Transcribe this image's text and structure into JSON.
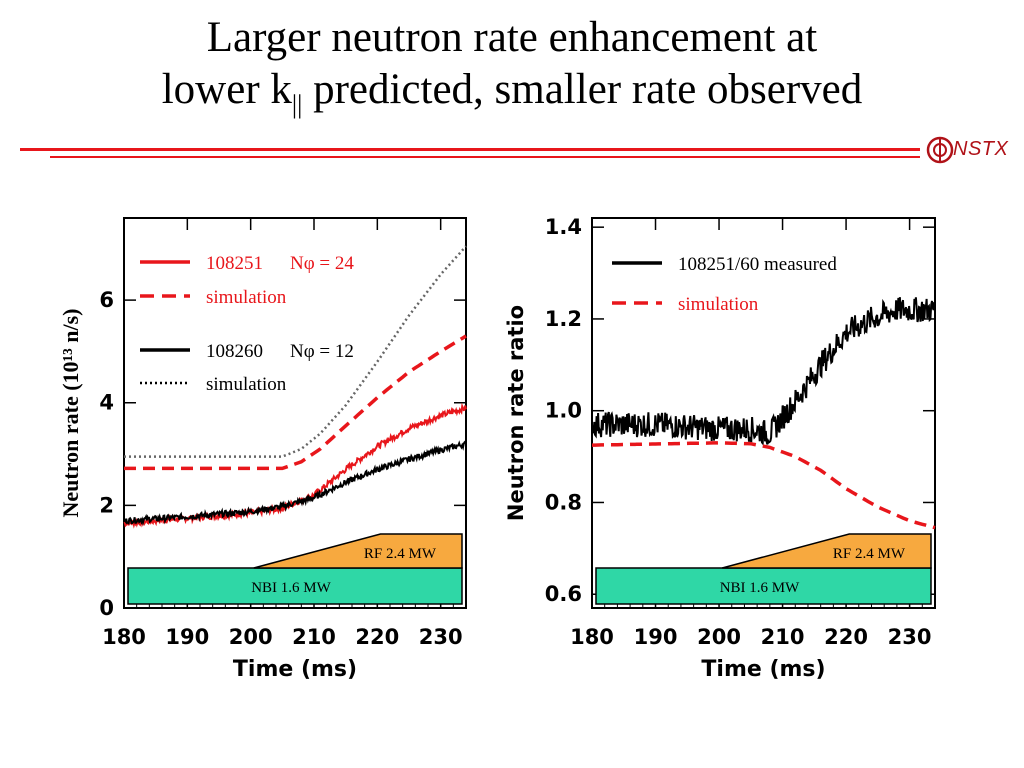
{
  "slide": {
    "title_line1": "Larger neutron rate enhancement at",
    "title_line2_pre": "lower k",
    "title_line2_sub": "||",
    "title_line2_post": " predicted, smaller rate observed",
    "logo_text": "NSTX",
    "accent_color": "#e8161b"
  },
  "chart_data": [
    {
      "type": "line",
      "xlabel": "Time (ms)",
      "ylabel": "Neutron rate (10¹³ n/s)",
      "xlim": [
        180,
        234
      ],
      "ylim": [
        0,
        7.6
      ],
      "xticks": [
        180,
        190,
        200,
        210,
        220,
        230
      ],
      "yticks": [
        0,
        2,
        4,
        6
      ],
      "legend": [
        {
          "label": "108251",
          "extra": "Nφ = 24",
          "color": "#e8161b",
          "style": "solid"
        },
        {
          "label": "simulation",
          "color": "#e8161b",
          "style": "dashed"
        },
        {
          "label": "108260",
          "extra": "Nφ = 12",
          "color": "#000000",
          "style": "solid"
        },
        {
          "label": "simulation",
          "color": "#000000",
          "style": "dotted"
        }
      ],
      "series": [
        {
          "color": "#e8161b",
          "style": "solid",
          "noisy": true,
          "x": [
            180,
            190,
            200,
            205,
            210,
            215,
            220,
            225,
            230,
            234
          ],
          "y": [
            1.65,
            1.75,
            1.85,
            1.95,
            2.2,
            2.7,
            3.15,
            3.5,
            3.75,
            3.9
          ]
        },
        {
          "color": "#e8161b",
          "style": "dashed",
          "noisy": false,
          "x": [
            180,
            205,
            208,
            211,
            215,
            220,
            225,
            230,
            234
          ],
          "y": [
            2.72,
            2.72,
            2.85,
            3.1,
            3.55,
            4.1,
            4.6,
            5.0,
            5.3
          ]
        },
        {
          "color": "#000000",
          "style": "solid",
          "noisy": true,
          "x": [
            180,
            190,
            200,
            205,
            210,
            215,
            220,
            225,
            230,
            234
          ],
          "y": [
            1.7,
            1.78,
            1.88,
            1.98,
            2.15,
            2.45,
            2.7,
            2.9,
            3.08,
            3.2
          ]
        },
        {
          "color": "#666666",
          "style": "dotted",
          "noisy": false,
          "x": [
            180,
            205,
            208,
            211,
            215,
            220,
            225,
            230,
            234
          ],
          "y": [
            2.95,
            2.95,
            3.1,
            3.4,
            3.95,
            4.8,
            5.7,
            6.5,
            7.05
          ]
        }
      ],
      "annotations": {
        "nbi_label": "NBI 1.6 MW",
        "rf_label": "RF 2.4 MW",
        "nbi_color": "#2fd7a6",
        "rf_color": "#f7a93f"
      }
    },
    {
      "type": "line",
      "xlabel": "Time (ms)",
      "ylabel": "Neutron rate ratio",
      "xlim": [
        180,
        234
      ],
      "ylim": [
        0.57,
        1.42
      ],
      "xticks": [
        180,
        190,
        200,
        210,
        220,
        230
      ],
      "yticks": [
        0.6,
        0.8,
        1.0,
        1.2,
        1.4
      ],
      "legend": [
        {
          "label": "108251/60 measured",
          "color": "#000000",
          "style": "solid"
        },
        {
          "label": "simulation",
          "color": "#e8161b",
          "style": "dashed"
        }
      ],
      "series": [
        {
          "color": "#000000",
          "style": "solid",
          "noisy": true,
          "x": [
            180,
            190,
            200,
            205,
            208,
            212,
            216,
            220,
            224,
            228,
            234
          ],
          "y": [
            0.97,
            0.97,
            0.96,
            0.96,
            0.95,
            1.02,
            1.1,
            1.17,
            1.2,
            1.22,
            1.22
          ]
        },
        {
          "color": "#e8161b",
          "style": "dashed",
          "noisy": false,
          "x": [
            180,
            200,
            205,
            208,
            212,
            216,
            220,
            225,
            230,
            234
          ],
          "y": [
            0.925,
            0.93,
            0.928,
            0.92,
            0.9,
            0.87,
            0.83,
            0.79,
            0.76,
            0.745
          ]
        }
      ],
      "annotations": {
        "nbi_label": "NBI 1.6 MW",
        "rf_label": "RF 2.4 MW",
        "nbi_color": "#2fd7a6",
        "rf_color": "#f7a93f"
      }
    }
  ]
}
